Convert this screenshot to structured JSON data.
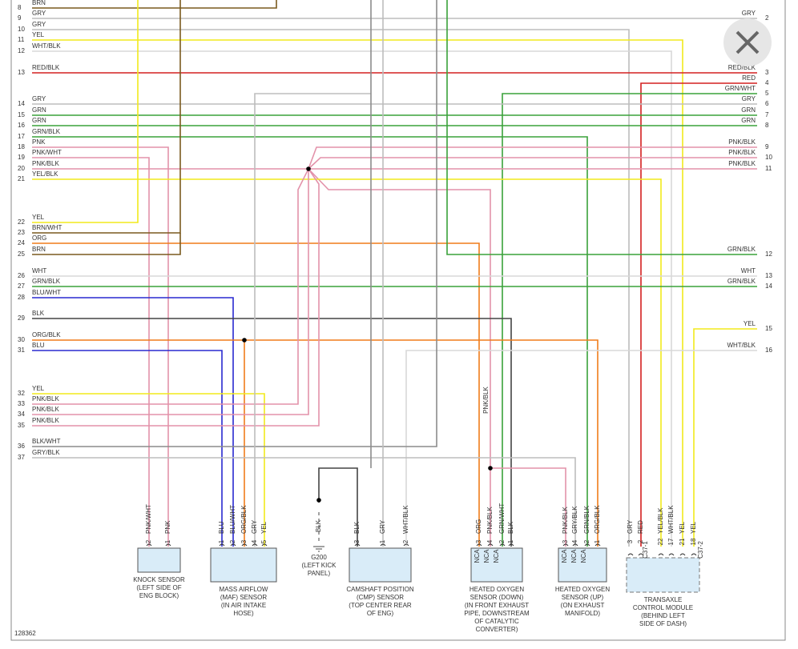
{
  "figure_number": "128362",
  "left_connector": [
    {
      "pin": "8",
      "wire": "BRN"
    },
    {
      "pin": "9",
      "wire": "GRY"
    },
    {
      "pin": "10",
      "wire": "GRY"
    },
    {
      "pin": "11",
      "wire": "YEL"
    },
    {
      "pin": "12",
      "wire": "WHT/BLK"
    },
    {
      "pin": "13",
      "wire": "RED/BLK"
    },
    {
      "pin": "14",
      "wire": "GRY"
    },
    {
      "pin": "15",
      "wire": "GRN"
    },
    {
      "pin": "16",
      "wire": "GRN"
    },
    {
      "pin": "17",
      "wire": "GRN/BLK"
    },
    {
      "pin": "18",
      "wire": "PNK"
    },
    {
      "pin": "19",
      "wire": "PNK/WHT"
    },
    {
      "pin": "20",
      "wire": "PNK/BLK"
    },
    {
      "pin": "21",
      "wire": "YEL/BLK"
    },
    {
      "pin": "22",
      "wire": "YEL"
    },
    {
      "pin": "23",
      "wire": "BRN/WHT"
    },
    {
      "pin": "24",
      "wire": "ORG"
    },
    {
      "pin": "25",
      "wire": "BRN"
    },
    {
      "pin": "26",
      "wire": "WHT"
    },
    {
      "pin": "27",
      "wire": "GRN/BLK"
    },
    {
      "pin": "28",
      "wire": "BLU/WHT"
    },
    {
      "pin": "29",
      "wire": "BLK"
    },
    {
      "pin": "30",
      "wire": "ORG/BLK"
    },
    {
      "pin": "31",
      "wire": "BLU"
    },
    {
      "pin": "32",
      "wire": "YEL"
    },
    {
      "pin": "33",
      "wire": "PNK/BLK"
    },
    {
      "pin": "34",
      "wire": "PNK/BLK"
    },
    {
      "pin": "35",
      "wire": "PNK/BLK"
    },
    {
      "pin": "36",
      "wire": "BLK/WHT"
    },
    {
      "pin": "37",
      "wire": "GRY/BLK"
    }
  ],
  "right_connector": [
    {
      "pin": "2",
      "wire": "GRY"
    },
    {
      "pin": "3",
      "wire": "RED/BLK"
    },
    {
      "pin": "4",
      "wire": "RED"
    },
    {
      "pin": "5",
      "wire": "GRN/WHT"
    },
    {
      "pin": "6",
      "wire": "GRY"
    },
    {
      "pin": "7",
      "wire": "GRN"
    },
    {
      "pin": "8",
      "wire": "GRN"
    },
    {
      "pin": "9",
      "wire": "PNK/BLK"
    },
    {
      "pin": "10",
      "wire": "PNK/BLK"
    },
    {
      "pin": "11",
      "wire": "PNK/BLK"
    },
    {
      "pin": "12",
      "wire": "GRN/BLK"
    },
    {
      "pin": "13",
      "wire": "WHT"
    },
    {
      "pin": "14",
      "wire": "GRN/BLK"
    },
    {
      "pin": "15",
      "wire": "YEL"
    },
    {
      "pin": "16",
      "wire": "WHT/BLK"
    }
  ],
  "splice_label": "PNK/BLK",
  "components": [
    {
      "name_lines": [
        "KNOCK SENSOR",
        "(LEFT SIDE OF",
        "ENG BLOCK)"
      ],
      "pins": [
        {
          "pin": "2",
          "wire": "PNK/WHT"
        },
        {
          "pin": "1",
          "wire": "PNK"
        }
      ]
    },
    {
      "name_lines": [
        "MASS AIRFLOW",
        "(MAF) SENSOR",
        "(IN AIR INTAKE",
        "HOSE)"
      ],
      "pins": [
        {
          "pin": "1",
          "wire": "BLU"
        },
        {
          "pin": "2",
          "wire": "BLU/WHT"
        },
        {
          "pin": "3",
          "wire": "ORG/BLK"
        },
        {
          "pin": "4",
          "wire": "GRY"
        },
        {
          "pin": "5",
          "wire": "YEL"
        }
      ]
    },
    {
      "name_lines": [
        "CAMSHAFT POSITION",
        "(CMP) SENSOR",
        "(TOP CENTER REAR",
        "OF ENG)"
      ],
      "pins": [
        {
          "pin": "3",
          "wire": "BLK"
        },
        {
          "pin": "1",
          "wire": "GRY"
        },
        {
          "pin": "2",
          "wire": "WHT/BLK"
        }
      ]
    },
    {
      "name_lines": [
        "HEATED OXYGEN",
        "SENSOR (DOWN)",
        "(IN FRONT EXHAUST",
        "PIPE, DOWNSTREAM",
        "OF CATALYTIC",
        "CONVERTER)"
      ],
      "pins": [
        {
          "pin": "3",
          "wire": "ORG"
        },
        {
          "pin": "4",
          "wire": "PNK/BLK"
        },
        {
          "pin": "2",
          "wire": "GRN/WHT"
        },
        {
          "pin": "1",
          "wire": "BLK"
        }
      ],
      "inner_labels": [
        "NCA",
        "NCA",
        "NCA"
      ]
    },
    {
      "name_lines": [
        "HEATED OXYGEN",
        "SENSOR (UP)",
        "(ON EXHAUST",
        "MANIFOLD)"
      ],
      "pins": [
        {
          "pin": "3",
          "wire": "PNK/BLK"
        },
        {
          "pin": "4",
          "wire": "GRY/BLK"
        },
        {
          "pin": "2",
          "wire": "GRN/BLK"
        },
        {
          "pin": "1",
          "wire": "ORG/BLK"
        }
      ],
      "inner_labels": [
        "NCA",
        "NCA",
        "NCA"
      ]
    },
    {
      "name_lines": [
        "TRANSAXLE",
        "CONTROL MODULE",
        "(BEHIND LEFT",
        "SIDE OF DASH)"
      ],
      "pins": [
        {
          "pin": "3",
          "wire": "GRY"
        },
        {
          "pin": "2",
          "wire": "RED"
        },
        {
          "pin": "22",
          "wire": "YEL/BLK"
        },
        {
          "pin": "17",
          "wire": "WHT/BLK"
        },
        {
          "pin": "21",
          "wire": "YEL"
        },
        {
          "pin": "18",
          "wire": "YEL"
        }
      ],
      "connectors": [
        "C37-1",
        "C37-2"
      ]
    }
  ],
  "ground": {
    "wire": "BLK",
    "name_lines": [
      "G200",
      "(LEFT KICK",
      "PANEL)"
    ]
  }
}
